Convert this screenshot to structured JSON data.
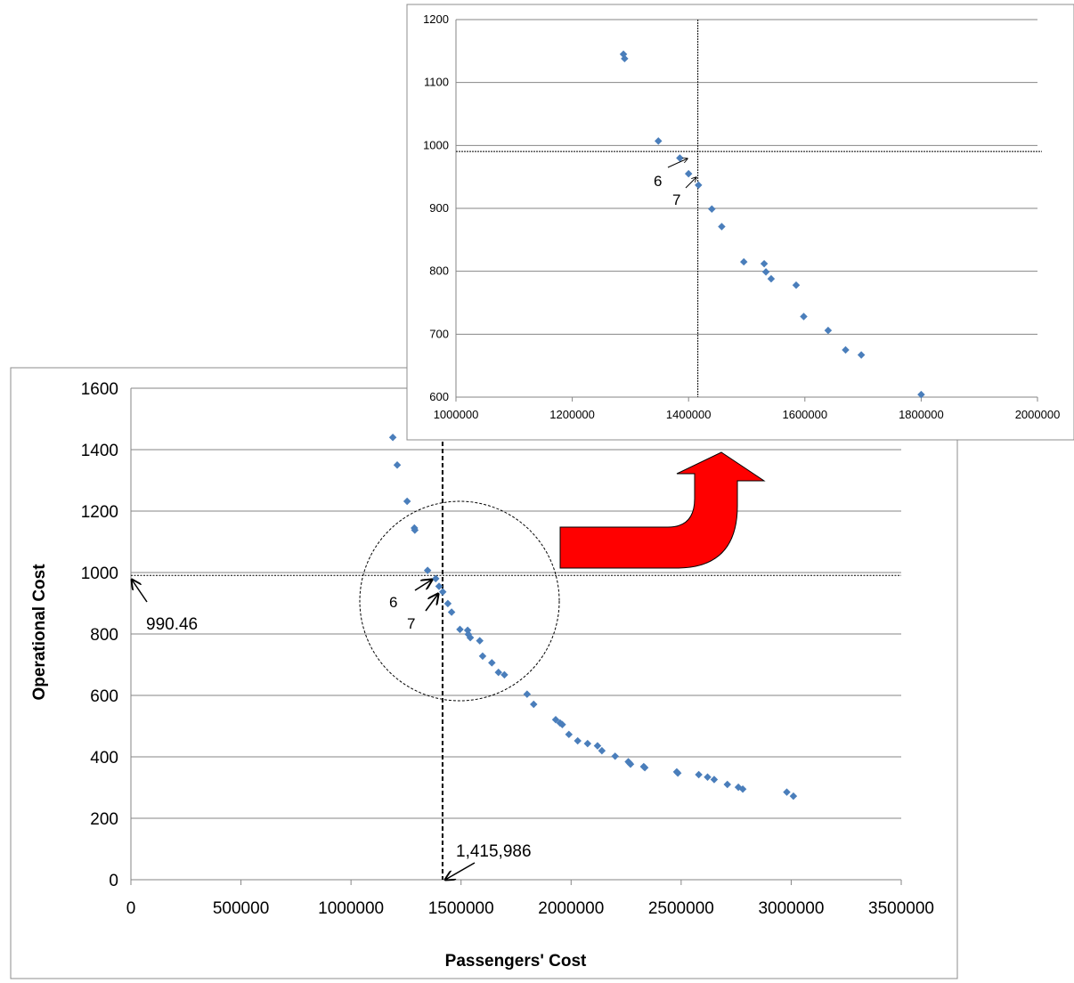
{
  "chart_data": [
    {
      "type": "scatter",
      "name": "main",
      "xlabel": "Passengers' Cost",
      "ylabel": "Operational Cost",
      "xlim": [
        0,
        3500000
      ],
      "ylim": [
        0,
        1600
      ],
      "xticks": [
        0,
        500000,
        1000000,
        1500000,
        2000000,
        2500000,
        3000000,
        3500000
      ],
      "xtick_labels": [
        "0",
        "500000",
        "1000000",
        "1500000",
        "2000000",
        "2500000",
        "3000000",
        "3500000"
      ],
      "yticks": [
        0,
        200,
        400,
        600,
        800,
        1000,
        1200,
        1400,
        1600
      ],
      "ytick_labels": [
        "0",
        "200",
        "400",
        "600",
        "800",
        "1000",
        "1200",
        "1400",
        "1600"
      ],
      "grid": "horizontal",
      "marker_color": "#4a7ebb",
      "points": [
        [
          1190000,
          1440
        ],
        [
          1210000,
          1350
        ],
        [
          1255000,
          1232
        ],
        [
          1288000,
          1145
        ],
        [
          1290000,
          1138
        ],
        [
          1348000,
          1007
        ],
        [
          1385000,
          980
        ],
        [
          1400000,
          955
        ],
        [
          1417000,
          937
        ],
        [
          1440000,
          899
        ],
        [
          1457000,
          871
        ],
        [
          1495000,
          815
        ],
        [
          1530000,
          812
        ],
        [
          1533000,
          799
        ],
        [
          1542000,
          788
        ],
        [
          1585000,
          778
        ],
        [
          1598000,
          728
        ],
        [
          1640000,
          706
        ],
        [
          1670000,
          675
        ],
        [
          1697000,
          667
        ],
        [
          1800000,
          604
        ],
        [
          1830000,
          571
        ],
        [
          1930000,
          521
        ],
        [
          1950000,
          510
        ],
        [
          1960000,
          505
        ],
        [
          1990000,
          473
        ],
        [
          2030000,
          452
        ],
        [
          2075000,
          443
        ],
        [
          2120000,
          436
        ],
        [
          2140000,
          420
        ],
        [
          2200000,
          402
        ],
        [
          2260000,
          384
        ],
        [
          2265000,
          380
        ],
        [
          2270000,
          376
        ],
        [
          2330000,
          368
        ],
        [
          2335000,
          365
        ],
        [
          2480000,
          351
        ],
        [
          2485000,
          347
        ],
        [
          2580000,
          342
        ],
        [
          2620000,
          334
        ],
        [
          2650000,
          326
        ],
        [
          2710000,
          310
        ],
        [
          2760000,
          301
        ],
        [
          2780000,
          295
        ],
        [
          2980000,
          285
        ],
        [
          3010000,
          272
        ]
      ],
      "ref_x": 1415986,
      "ref_y": 990.46,
      "annotations": {
        "x_label": "1,415,986",
        "y_label": "990.46",
        "label_6": "6",
        "label_7": "7"
      }
    },
    {
      "type": "scatter",
      "name": "inset",
      "xlim": [
        1000000,
        2000000
      ],
      "ylim": [
        600,
        1200
      ],
      "xticks": [
        1000000,
        1200000,
        1400000,
        1600000,
        1800000,
        2000000
      ],
      "xtick_labels": [
        "1000000",
        "1200000",
        "1400000",
        "1600000",
        "1800000",
        "2000000"
      ],
      "yticks": [
        600,
        700,
        800,
        900,
        1000,
        1100,
        1200
      ],
      "ytick_labels": [
        "600",
        "700",
        "800",
        "900",
        "1000",
        "1100",
        "1200"
      ],
      "grid": "horizontal",
      "ref_x": 1415986,
      "ref_y": 990.46,
      "annotations": {
        "label_6": "6",
        "label_7": "7"
      }
    }
  ],
  "arrow_color": "#ff0000"
}
